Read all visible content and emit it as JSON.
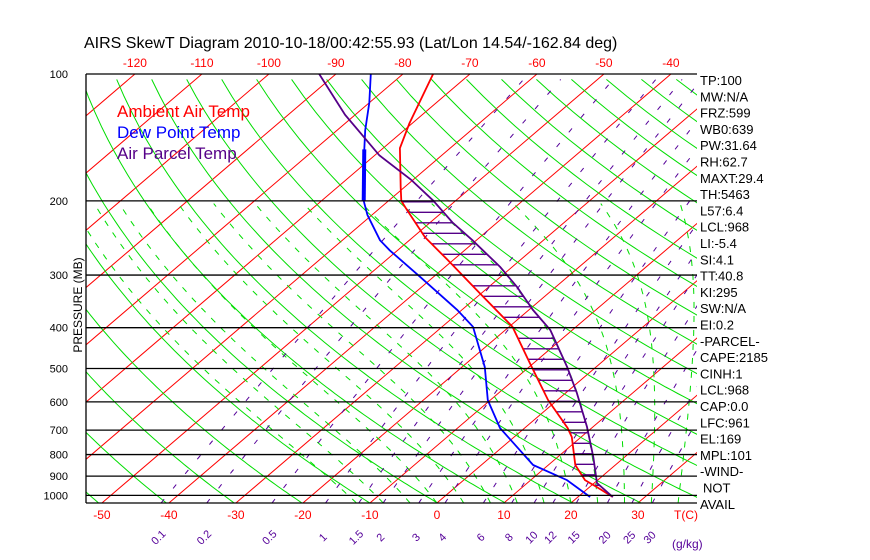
{
  "title": "AIRS SkewT Diagram 2010-10-18/00:42:55.93 (Lat/Lon 14.54/-162.84 deg)",
  "colors": {
    "ambient": "#ff0000",
    "dewpoint": "#0000ff",
    "parcel": "#550088",
    "dry_adiabat": "#00dd00",
    "moist_adiabat": "#00dd00",
    "mixing_ratio": "#550099",
    "isotherm": "#ff0000",
    "isobar": "#000000"
  },
  "legend": [
    {
      "label": "Ambient Air Temp",
      "color": "#ff0000"
    },
    {
      "label": "Dew Point Temp",
      "color": "#0000ff"
    },
    {
      "label": "Air Parcel Temp",
      "color": "#550088"
    }
  ],
  "stats": [
    "TP:100",
    "MW:N/A",
    "FRZ:599",
    "WB0:639",
    "PW:31.64",
    "RH:62.7",
    "MAXT:29.4",
    "TH:5463",
    "L57:6.4",
    "LCL:968",
    "LI:-5.4",
    "SI:4.1",
    "TT:40.8",
    "KI:295",
    "SW:N/A",
    "EI:0.2",
    "-PARCEL-",
    "CAPE:2185",
    "CINH:1",
    "LCL:968",
    "CAP:0.0",
    "LFC:961",
    "EL:169",
    "MPL:101",
    "-WIND-",
    "NOT",
    "AVAIL"
  ],
  "chart_data": {
    "type": "line",
    "subtype": "skew-t log-p",
    "title": "AIRS SkewT Diagram 2010-10-18/00:42:55.93 (Lat/Lon 14.54/-162.84 deg)",
    "ylabel": "PRESSURE (MB)",
    "xlabel": "T(C)",
    "mixing_ratio_unit": "(g/kg)",
    "ylim": [
      1043,
      100
    ],
    "pressure_ticks": [
      100,
      200,
      300,
      400,
      500,
      600,
      700,
      800,
      900,
      1000
    ],
    "top_temp_ticks": [
      -120,
      -110,
      -100,
      -90,
      -80,
      -70,
      -60,
      -50,
      -40
    ],
    "bottom_temp_ticks": [
      -50,
      -40,
      -30,
      -20,
      -10,
      0,
      10,
      20,
      30
    ],
    "mixing_ratio_ticks": [
      "0.1",
      "0.2",
      "0.5",
      "1",
      "1.5",
      "2",
      "3",
      "4",
      "6",
      "8",
      "10",
      "12",
      "15",
      "20",
      "25",
      "30"
    ],
    "series": [
      {
        "name": "Ambient Air Temp",
        "key": "ambient",
        "p": [
          100,
          131,
          150,
          186,
          200,
          210,
          244,
          276,
          326,
          398,
          485,
          594,
          692,
          727,
          847,
          920,
          955,
          1009
        ],
        "T": [
          -75.5,
          -70.4,
          -67.5,
          -60.5,
          -58.1,
          -55.7,
          -48.2,
          -40.9,
          -31.2,
          -19.5,
          -10.6,
          -1.4,
          6.4,
          8.6,
          14.0,
          18.1,
          21.0,
          25.2
        ]
      },
      {
        "name": "Dew Point Temp",
        "key": "dewpoint",
        "p": [
          100,
          117,
          136,
          151,
          200,
          216,
          248,
          262,
          303,
          363,
          398,
          496,
          594,
          692,
          847,
          920,
          1009
        ],
        "T": [
          -84.8,
          -80.0,
          -75.8,
          -72.6,
          -63.7,
          -60.7,
          -54.4,
          -51.2,
          -42.0,
          -30.7,
          -25.4,
          -16.6,
          -10.4,
          -3.7,
          7.7,
          15.4,
          21.8
        ]
      },
      {
        "name": "Air Parcel Temp",
        "key": "parcel",
        "p": [
          100,
          125,
          156,
          178,
          200,
          225,
          248,
          287,
          320,
          363,
          405,
          496,
          572,
          688,
          811,
          935,
          1009
        ],
        "T": [
          -92.5,
          -81.5,
          -69.3,
          -60.4,
          -53.3,
          -46.7,
          -40.6,
          -31.8,
          -25.8,
          -19.4,
          -13.3,
          -4.3,
          1.7,
          9.1,
          15.3,
          20.4,
          25.2
        ]
      }
    ],
    "grid": true,
    "legend_position": "top-left"
  }
}
